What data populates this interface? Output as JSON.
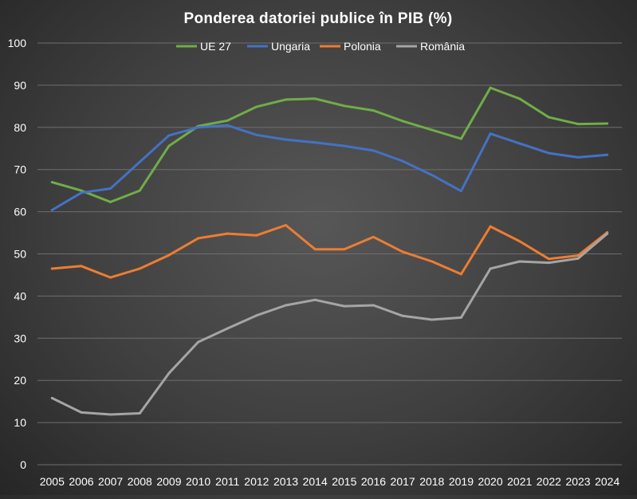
{
  "chart_data": {
    "type": "line",
    "title": "Ponderea datoriei publice în PIB (%)",
    "xlabel": "",
    "ylabel": "",
    "ylim": [
      0,
      100
    ],
    "yticks": [
      0,
      10,
      20,
      30,
      40,
      50,
      60,
      70,
      80,
      90,
      100
    ],
    "grid": true,
    "legend_position": "top",
    "categories": [
      "2005",
      "2006",
      "2007",
      "2008",
      "2009",
      "2010",
      "2011",
      "2012",
      "2013",
      "2014",
      "2015",
      "2016",
      "2017",
      "2018",
      "2019",
      "2020",
      "2021",
      "2022",
      "2023",
      "2024"
    ],
    "series": [
      {
        "name": "UE 27",
        "color": "#70ad47",
        "values": [
          67.0,
          65.0,
          62.3,
          65.0,
          75.6,
          80.3,
          81.6,
          84.9,
          86.6,
          86.8,
          85.1,
          84.0,
          81.5,
          79.4,
          77.3,
          89.4,
          86.8,
          82.4,
          80.8,
          80.9
        ]
      },
      {
        "name": "Ungaria",
        "color": "#4472c4",
        "values": [
          60.4,
          64.5,
          65.5,
          71.8,
          78.1,
          80.0,
          80.5,
          78.2,
          77.1,
          76.4,
          75.6,
          74.5,
          72.0,
          68.7,
          64.9,
          78.5,
          76.2,
          73.9,
          72.9,
          73.5
        ]
      },
      {
        "name": "Polonia",
        "color": "#ed7d31",
        "values": [
          46.5,
          47.1,
          44.4,
          46.5,
          49.7,
          53.7,
          54.8,
          54.4,
          56.8,
          51.1,
          51.1,
          54.0,
          50.5,
          48.2,
          45.2,
          56.5,
          53.0,
          48.8,
          49.6,
          55.1
        ]
      },
      {
        "name": "România",
        "color": "#a5a5a5",
        "values": [
          15.8,
          12.4,
          11.9,
          12.2,
          21.7,
          29.1,
          32.3,
          35.4,
          37.8,
          39.1,
          37.6,
          37.8,
          35.3,
          34.4,
          34.9,
          46.5,
          48.2,
          47.9,
          48.9,
          54.8
        ]
      }
    ]
  }
}
